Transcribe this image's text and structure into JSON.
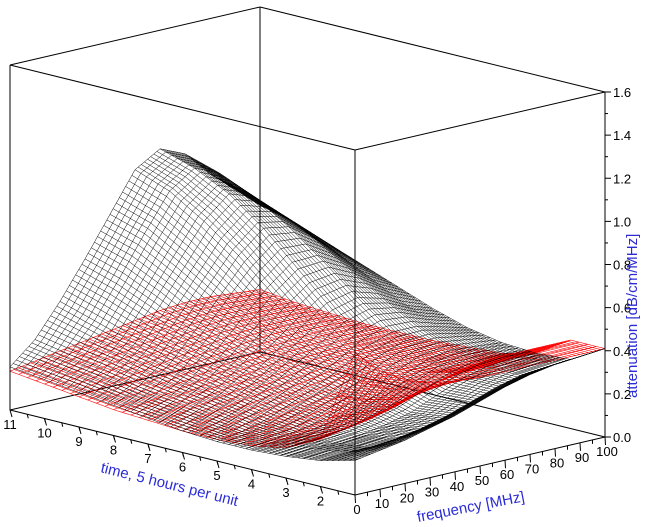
{
  "chart_data": {
    "type": "surface3d",
    "axes": {
      "x": {
        "label": "frequency [MHz]",
        "min": 0,
        "max": 100,
        "ticks": [
          0,
          10,
          20,
          30,
          40,
          50,
          60,
          70,
          80,
          90,
          100
        ]
      },
      "y": {
        "label": "time, 5 hours per unit",
        "min": 1,
        "max": 11,
        "ticks": [
          2,
          3,
          4,
          5,
          6,
          7,
          8,
          9,
          10,
          11
        ]
      },
      "z": {
        "label": "attenuation [dB/cm/MHz]",
        "min": 0.0,
        "max": 1.6,
        "ticks": [
          "0.0",
          "0.2",
          "0.4",
          "0.6",
          "0.8",
          "1.0",
          "1.2",
          "1.4",
          "1.6"
        ]
      }
    },
    "series": [
      {
        "color": "#000000",
        "x": [
          0,
          10,
          20,
          30,
          40,
          50,
          60,
          70,
          80,
          90,
          100
        ],
        "y": [
          11,
          10,
          9,
          8,
          7,
          6,
          5,
          4,
          3,
          2,
          1
        ],
        "z": [
          [
            0.2,
            0.3,
            0.45,
            0.62,
            0.8,
            0.98,
            1.05,
            1.0,
            0.88,
            0.78,
            0.68
          ],
          [
            0.18,
            0.27,
            0.4,
            0.57,
            0.75,
            0.92,
            1.0,
            0.95,
            0.84,
            0.74,
            0.64
          ],
          [
            0.16,
            0.24,
            0.35,
            0.5,
            0.66,
            0.82,
            0.92,
            0.88,
            0.78,
            0.68,
            0.58
          ],
          [
            0.14,
            0.2,
            0.29,
            0.42,
            0.56,
            0.7,
            0.8,
            0.78,
            0.7,
            0.6,
            0.52
          ],
          [
            0.12,
            0.17,
            0.24,
            0.34,
            0.45,
            0.56,
            0.65,
            0.66,
            0.6,
            0.52,
            0.46
          ],
          [
            0.1,
            0.14,
            0.19,
            0.26,
            0.34,
            0.42,
            0.5,
            0.53,
            0.5,
            0.44,
            0.4
          ],
          [
            0.09,
            0.11,
            0.14,
            0.19,
            0.24,
            0.3,
            0.37,
            0.41,
            0.41,
            0.38,
            0.35
          ],
          [
            0.09,
            0.1,
            0.11,
            0.13,
            0.17,
            0.21,
            0.27,
            0.32,
            0.34,
            0.33,
            0.32
          ],
          [
            0.1,
            0.11,
            0.11,
            0.12,
            0.14,
            0.17,
            0.22,
            0.27,
            0.3,
            0.31,
            0.31
          ],
          [
            0.12,
            0.13,
            0.13,
            0.14,
            0.16,
            0.19,
            0.23,
            0.27,
            0.3,
            0.31,
            0.32
          ],
          [
            0.16,
            0.18,
            0.2,
            0.23,
            0.26,
            0.3,
            0.34,
            0.37,
            0.39,
            0.4,
            0.41
          ]
        ]
      },
      {
        "color": "#ff0000",
        "x": [
          0,
          10,
          20,
          30,
          40,
          50,
          60,
          70,
          80,
          90,
          100
        ],
        "y": [
          11,
          10,
          9,
          8,
          7,
          6,
          5,
          4,
          3,
          2,
          1
        ],
        "z": [
          [
            0.18,
            0.2,
            0.22,
            0.24,
            0.26,
            0.28,
            0.3,
            0.31,
            0.31,
            0.3,
            0.29
          ],
          [
            0.16,
            0.18,
            0.2,
            0.22,
            0.24,
            0.26,
            0.28,
            0.29,
            0.29,
            0.28,
            0.27
          ],
          [
            0.14,
            0.16,
            0.18,
            0.2,
            0.22,
            0.24,
            0.26,
            0.27,
            0.27,
            0.27,
            0.26
          ],
          [
            0.12,
            0.14,
            0.16,
            0.18,
            0.2,
            0.22,
            0.24,
            0.25,
            0.26,
            0.26,
            0.25
          ],
          [
            0.11,
            0.13,
            0.15,
            0.17,
            0.19,
            0.21,
            0.23,
            0.24,
            0.25,
            0.25,
            0.25
          ],
          [
            0.1,
            0.12,
            0.14,
            0.16,
            0.18,
            0.2,
            0.22,
            0.24,
            0.25,
            0.25,
            0.25
          ],
          [
            0.1,
            0.11,
            0.13,
            0.15,
            0.17,
            0.19,
            0.22,
            0.24,
            0.25,
            0.25,
            0.26
          ],
          [
            0.11,
            0.12,
            0.13,
            0.15,
            0.18,
            0.21,
            0.24,
            0.26,
            0.26,
            0.27,
            0.27
          ],
          [
            0.14,
            0.15,
            0.16,
            0.18,
            0.21,
            0.25,
            0.28,
            0.3,
            0.3,
            0.31,
            0.31
          ],
          [
            0.22,
            0.24,
            0.26,
            0.29,
            0.33,
            0.37,
            0.4,
            0.41,
            0.41,
            0.41,
            0.41
          ],
          [
            0.66,
            0.55,
            0.48,
            0.44,
            0.42,
            0.41,
            0.41,
            0.41,
            0.41,
            0.41,
            0.41
          ]
        ]
      }
    ],
    "grid": false,
    "box": true
  }
}
